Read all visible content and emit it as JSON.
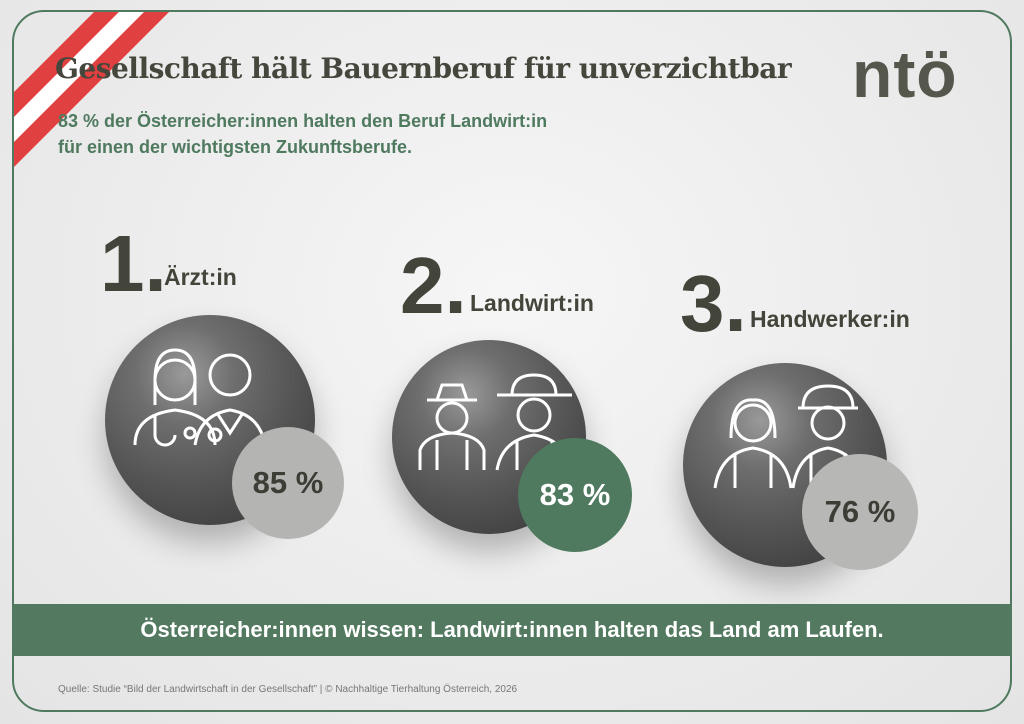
{
  "title": "Gesellschaft hält Bauernberuf für unverzichtbar",
  "logo": "ntö",
  "subtitle": {
    "line1": "83 % der Österreicher:innen halten den Beruf Landwirt:in",
    "line2": "für einen der wichtigsten Zukunftsberufe."
  },
  "ranking": [
    {
      "rank": "1.",
      "label": "Ärzt:in",
      "value": "85 %",
      "icon": "doctors-icon",
      "badge_color": "#b4b4b2"
    },
    {
      "rank": "2.",
      "label": "Landwirt:in",
      "value": "83 %",
      "icon": "farmers-icon",
      "badge_color": "#4f7a5f"
    },
    {
      "rank": "3.",
      "label": "Handwerker:in",
      "value": "76 %",
      "icon": "craftsmen-icon",
      "badge_color": "#b7b7b5"
    }
  ],
  "banner": "Österreicher:innen wissen: Landwirt:innen halten das Land am Laufen.",
  "footer": "Quelle:  Studie “Bild der Landwirtschaft in der Gesellschaft”  |  © Nachhaltige Tierhaltung Österreich, 2026",
  "colors": {
    "accent": "#4f7a5f",
    "flag_red": "#e04040"
  }
}
